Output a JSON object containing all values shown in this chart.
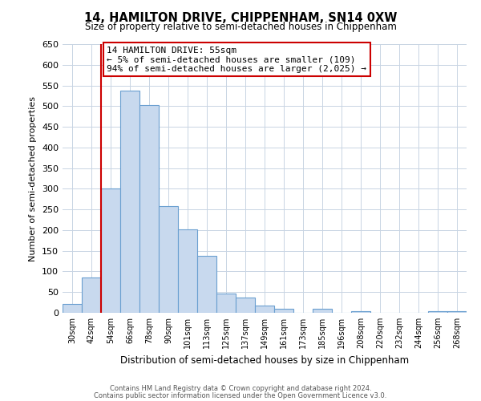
{
  "title": "14, HAMILTON DRIVE, CHIPPENHAM, SN14 0XW",
  "subtitle": "Size of property relative to semi-detached houses in Chippenham",
  "xlabel": "Distribution of semi-detached houses by size in Chippenham",
  "ylabel": "Number of semi-detached properties",
  "bin_labels": [
    "30sqm",
    "42sqm",
    "54sqm",
    "66sqm",
    "78sqm",
    "90sqm",
    "101sqm",
    "113sqm",
    "125sqm",
    "137sqm",
    "149sqm",
    "161sqm",
    "173sqm",
    "185sqm",
    "196sqm",
    "208sqm",
    "220sqm",
    "232sqm",
    "244sqm",
    "256sqm",
    "268sqm"
  ],
  "bar_heights": [
    22,
    85,
    300,
    538,
    503,
    258,
    202,
    138,
    46,
    36,
    18,
    10,
    0,
    10,
    0,
    3,
    0,
    0,
    0,
    3,
    3
  ],
  "bar_color": "#c8d9ee",
  "bar_edge_color": "#6a9fd0",
  "annotation_title": "14 HAMILTON DRIVE: 55sqm",
  "annotation_line1": "← 5% of semi-detached houses are smaller (109)",
  "annotation_line2": "94% of semi-detached houses are larger (2,025) →",
  "annotation_box_color": "#ffffff",
  "annotation_box_edge": "#cc0000",
  "property_line_color": "#cc0000",
  "ylim": [
    0,
    650
  ],
  "yticks": [
    0,
    50,
    100,
    150,
    200,
    250,
    300,
    350,
    400,
    450,
    500,
    550,
    600,
    650
  ],
  "footer_line1": "Contains HM Land Registry data © Crown copyright and database right 2024.",
  "footer_line2": "Contains public sector information licensed under the Open Government Licence v3.0.",
  "background_color": "#ffffff",
  "grid_color": "#c8d4e3"
}
